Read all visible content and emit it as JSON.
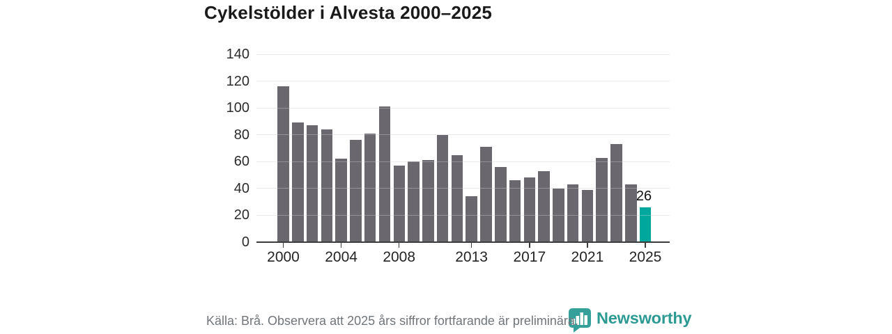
{
  "chart_data": {
    "type": "bar",
    "title": "Cykelstölder i Alvesta 2000–2025",
    "categories": [
      "2000",
      "2001",
      "2002",
      "2003",
      "2004",
      "2005",
      "2006",
      "2007",
      "2008",
      "2009",
      "2010",
      "2011",
      "2012",
      "2013",
      "2014",
      "2015",
      "2016",
      "2017",
      "2018",
      "2019",
      "2020",
      "2021",
      "2022",
      "2023",
      "2024",
      "2025"
    ],
    "values": [
      116,
      89,
      87,
      84,
      62,
      76,
      81,
      101,
      57,
      60,
      61,
      80,
      65,
      34,
      71,
      56,
      46,
      48,
      53,
      40,
      43,
      39,
      63,
      73,
      43,
      26
    ],
    "xlabel": "",
    "ylabel": "",
    "ylim": [
      0,
      140
    ],
    "y_ticks": [
      0,
      20,
      40,
      60,
      80,
      100,
      120,
      140
    ],
    "x_ticks": [
      "2000",
      "2004",
      "2008",
      "2013",
      "2017",
      "2021",
      "2025"
    ],
    "grid": "horizontal",
    "legend": "none",
    "bar_color": "#6a676e",
    "highlight": {
      "category": "2025",
      "value": 26,
      "label": "26",
      "color": "#00a79c"
    }
  },
  "footer": {
    "source_note": "Källa: Brå. Observera att 2025 års siffror fortfarande är preliminära."
  },
  "branding": {
    "name": "Newsworthy",
    "icon": "newsworthy-bubble-bar-chart-icon",
    "color": "#2c9a93"
  }
}
